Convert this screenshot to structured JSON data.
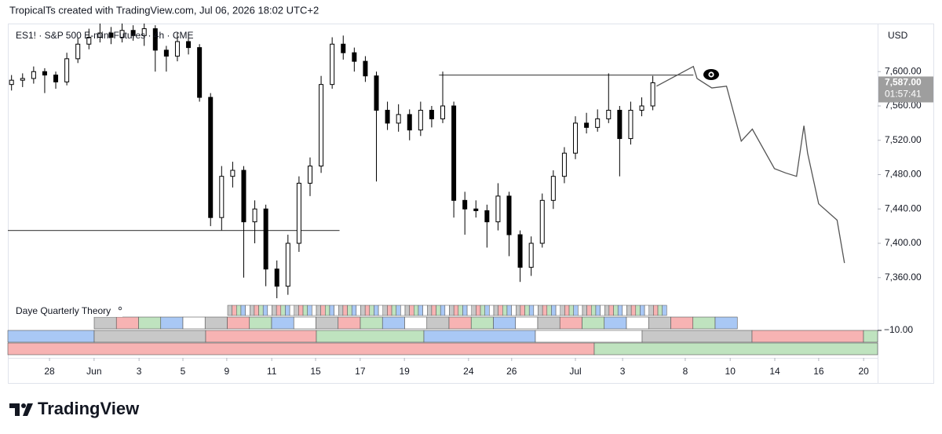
{
  "header": "TropicalTs created with TradingView.com, Jul 06, 2026 18:02 UTC+2",
  "chart_data": {
    "type": "candlestick",
    "title": "ES1! · S&P 500 E-mini Futures · 4h · CME",
    "currency": "USD",
    "x": [
      1,
      4,
      7,
      10,
      13,
      16,
      19,
      22,
      25,
      28,
      31,
      34,
      37,
      40,
      43,
      46,
      49,
      52,
      55,
      58,
      61,
      64,
      67,
      70,
      73,
      76,
      79,
      82,
      85,
      88,
      91,
      94,
      97,
      100,
      103,
      106,
      109,
      112,
      115,
      118,
      121,
      124,
      127,
      130,
      133,
      136,
      139,
      142,
      145,
      148,
      151,
      154,
      157,
      160,
      163,
      166,
      169,
      172,
      175
    ],
    "open": [
      7585,
      7590,
      7592,
      7600,
      7596,
      7588,
      7615,
      7632,
      7640,
      7645,
      7640,
      7648,
      7642,
      7650,
      7625,
      7618,
      7635,
      7628,
      7570,
      7430,
      7478,
      7485,
      7425,
      7440,
      7370,
      7350,
      7400,
      7470,
      7490,
      7585,
      7632,
      7622,
      7612,
      7595,
      7555,
      7540,
      7550,
      7532,
      7555,
      7545,
      7560,
      7450,
      7440,
      7438,
      7425,
      7455,
      7410,
      7372,
      7400,
      7450,
      7478,
      7505,
      7540,
      7535,
      7545,
      7555,
      7522,
      7555,
      7560
    ],
    "high": [
      7596,
      7598,
      7606,
      7604,
      7600,
      7622,
      7640,
      7650,
      7656,
      7652,
      7656,
      7654,
      7656,
      7654,
      7630,
      7645,
      7645,
      7632,
      7575,
      7490,
      7495,
      7490,
      7450,
      7445,
      7380,
      7410,
      7478,
      7500,
      7595,
      7640,
      7642,
      7628,
      7618,
      7600,
      7565,
      7562,
      7556,
      7565,
      7560,
      7600,
      7565,
      7460,
      7450,
      7445,
      7470,
      7460,
      7415,
      7408,
      7458,
      7485,
      7512,
      7548,
      7552,
      7556,
      7598,
      7560,
      7565,
      7570,
      7595
    ],
    "low": [
      7578,
      7582,
      7586,
      7575,
      7580,
      7584,
      7610,
      7626,
      7634,
      7632,
      7634,
      7636,
      7630,
      7600,
      7600,
      7612,
      7620,
      7565,
      7420,
      7415,
      7465,
      7360,
      7400,
      7350,
      7336,
      7340,
      7390,
      7455,
      7482,
      7580,
      7614,
      7600,
      7588,
      7472,
      7532,
      7530,
      7520,
      7525,
      7535,
      7540,
      7430,
      7410,
      7430,
      7395,
      7415,
      7385,
      7355,
      7362,
      7395,
      7440,
      7470,
      7498,
      7528,
      7530,
      7540,
      7478,
      7515,
      7548,
      7555
    ],
    "close": [
      7590,
      7592,
      7600,
      7596,
      7588,
      7615,
      7632,
      7640,
      7645,
      7640,
      7648,
      7642,
      7650,
      7625,
      7618,
      7635,
      7628,
      7570,
      7430,
      7478,
      7485,
      7425,
      7440,
      7370,
      7350,
      7400,
      7470,
      7490,
      7585,
      7632,
      7622,
      7612,
      7595,
      7555,
      7540,
      7550,
      7532,
      7555,
      7545,
      7560,
      7450,
      7440,
      7438,
      7425,
      7455,
      7410,
      7372,
      7400,
      7450,
      7478,
      7505,
      7540,
      7535,
      7545,
      7555,
      7522,
      7555,
      7560,
      7587
    ],
    "up_color": "#ffffff",
    "down_color": "#000000",
    "xlim": [
      0,
      236
    ],
    "ylim": [
      7336,
      7656
    ],
    "xticks": [
      {
        "value": 11.3,
        "label": "28"
      },
      {
        "value": 23.4,
        "label": "Jun"
      },
      {
        "value": 35.6,
        "label": "3"
      },
      {
        "value": 47.5,
        "label": "5"
      },
      {
        "value": 59.4,
        "label": "9"
      },
      {
        "value": 71.6,
        "label": "11"
      },
      {
        "value": 83.5,
        "label": "15"
      },
      {
        "value": 95.6,
        "label": "17"
      },
      {
        "value": 107.6,
        "label": "19"
      },
      {
        "value": 125,
        "label": "24"
      },
      {
        "value": 136.7,
        "label": "26"
      },
      {
        "value": 154,
        "label": "Jul"
      },
      {
        "value": 166.8,
        "label": "3"
      },
      {
        "value": 183.8,
        "label": "8"
      },
      {
        "value": 196,
        "label": "10"
      },
      {
        "value": 208.1,
        "label": "14"
      },
      {
        "value": 220,
        "label": "16"
      },
      {
        "value": 232.2,
        "label": "20"
      }
    ],
    "yticks": [
      {
        "value": 7360,
        "label": "7,360.00"
      },
      {
        "value": 7400,
        "label": "7,400.00"
      },
      {
        "value": 7440,
        "label": "7,440.00"
      },
      {
        "value": 7480,
        "label": "7,480.00"
      },
      {
        "value": 7520,
        "label": "7,520.00"
      },
      {
        "value": 7560,
        "label": "7,560.00"
      },
      {
        "value": 7600,
        "label": "7,600.00"
      }
    ],
    "last_price": {
      "value": 7587,
      "label": "7,587.00"
    },
    "countdown": "01:57:41",
    "levels": [
      {
        "value": 7596,
        "x": [
          117,
          186
        ]
      },
      {
        "value": 7415,
        "x": [
          0,
          90
        ]
      }
    ],
    "projection": {
      "x": [
        176,
        186,
        187,
        191,
        195,
        199,
        202,
        208,
        211,
        214,
        216,
        217,
        220,
        225,
        227
      ],
      "values": [
        7583,
        7606,
        7592,
        7581,
        7583,
        7519,
        7533,
        7487,
        7482,
        7478,
        7537,
        7505,
        7446,
        7427,
        7377
      ],
      "color": "#555555"
    },
    "indicator": {
      "name": "Daye Quarterly Theory",
      "yticks": [
        {
          "value": -10,
          "label": "−10.00"
        }
      ]
    }
  },
  "footer": "TradingView"
}
